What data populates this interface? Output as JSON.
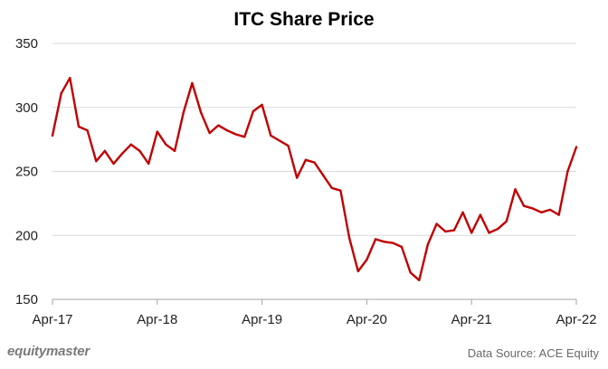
{
  "chart_data": {
    "type": "line",
    "title": "ITC Share Price",
    "xlabel": "",
    "ylabel": "",
    "ylim": [
      150,
      350
    ],
    "yticks": [
      150,
      200,
      250,
      300,
      350
    ],
    "x_tick_labels": [
      "Apr-17",
      "Apr-18",
      "Apr-19",
      "Apr-20",
      "Apr-21",
      "Apr-22"
    ],
    "grid": "horizontal",
    "line_color": "#C00000",
    "series": [
      {
        "values": [
          278,
          311,
          323,
          285,
          282,
          258,
          266,
          256,
          264,
          271,
          266,
          256,
          281,
          271,
          266,
          296,
          319,
          296,
          280,
          286,
          282,
          279,
          277,
          297,
          302,
          278,
          274,
          270,
          245,
          259,
          257,
          247,
          237,
          235,
          198,
          172,
          181,
          197,
          195,
          194,
          191,
          171,
          165,
          193,
          209,
          203,
          204,
          218,
          202,
          216,
          202,
          205,
          211,
          236,
          223,
          221,
          218,
          220,
          216,
          250,
          269
        ]
      }
    ]
  },
  "footer": {
    "brand": "equitymaster",
    "source": "Data Source: ACE Equity"
  }
}
